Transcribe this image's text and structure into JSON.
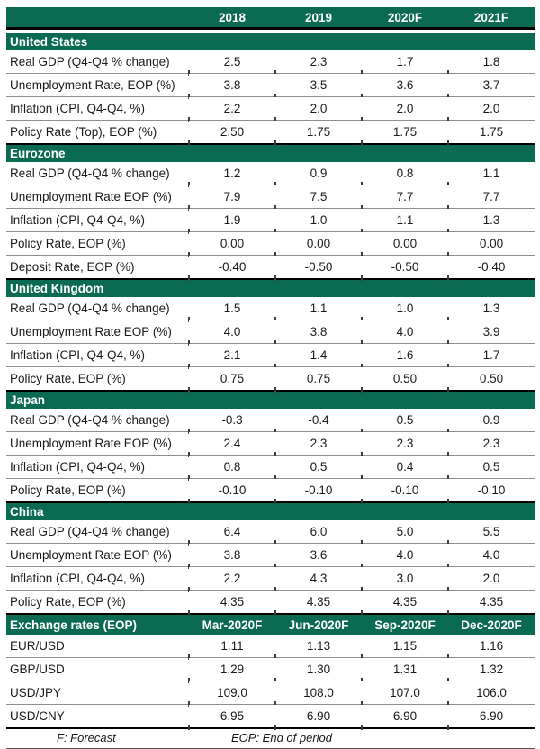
{
  "colors": {
    "band_green": "#0b6a52",
    "band_text": "#ffffff",
    "body_text": "#1a1a1a",
    "row_line": "#8f8f8f",
    "heavy_line": "#000000"
  },
  "table": {
    "period_headers": [
      "",
      "2018",
      "2019",
      "2020F",
      "2021F"
    ],
    "sections": [
      {
        "name": "United States",
        "rows": [
          {
            "label": "Real GDP (Q4-Q4 % change)",
            "values": [
              "2.5",
              "2.3",
              "1.7",
              "1.8"
            ]
          },
          {
            "label": "Unemployment Rate, EOP (%)",
            "values": [
              "3.8",
              "3.5",
              "3.6",
              "3.7"
            ]
          },
          {
            "label": "Inflation (CPI, Q4-Q4, %)",
            "values": [
              "2.2",
              "2.0",
              "2.0",
              "2.0"
            ]
          },
          {
            "label": "Policy Rate (Top), EOP (%)",
            "values": [
              "2.50",
              "1.75",
              "1.75",
              "1.75"
            ]
          }
        ]
      },
      {
        "name": "Eurozone",
        "rows": [
          {
            "label": "Real GDP (Q4-Q4 % change)",
            "values": [
              "1.2",
              "0.9",
              "0.8",
              "1.1"
            ]
          },
          {
            "label": "Unemployment Rate EOP (%)",
            "values": [
              "7.9",
              "7.5",
              "7.7",
              "7.7"
            ]
          },
          {
            "label": "Inflation (CPI, Q4-Q4, %)",
            "values": [
              "1.9",
              "1.0",
              "1.1",
              "1.3"
            ]
          },
          {
            "label": "Policy Rate, EOP (%)",
            "values": [
              "0.00",
              "0.00",
              "0.00",
              "0.00"
            ]
          },
          {
            "label": "Deposit Rate, EOP (%)",
            "values": [
              "-0.40",
              "-0.50",
              "-0.50",
              "-0.40"
            ]
          }
        ]
      },
      {
        "name": "United Kingdom",
        "rows": [
          {
            "label": "Real GDP (Q4-Q4 % change)",
            "values": [
              "1.5",
              "1.1",
              "1.0",
              "1.3"
            ]
          },
          {
            "label": "Unemployment Rate EOP (%)",
            "values": [
              "4.0",
              "3.8",
              "4.0",
              "3.9"
            ]
          },
          {
            "label": "Inflation (CPI, Q4-Q4, %)",
            "values": [
              "2.1",
              "1.4",
              "1.6",
              "1.7"
            ]
          },
          {
            "label": "Policy Rate, EOP (%)",
            "values": [
              "0.75",
              "0.75",
              "0.50",
              "0.50"
            ]
          }
        ]
      },
      {
        "name": "Japan",
        "rows": [
          {
            "label": "Real GDP (Q4-Q4 % change)",
            "values": [
              "-0.3",
              "-0.4",
              "0.5",
              "0.9"
            ]
          },
          {
            "label": "Unemployment Rate EOP (%)",
            "values": [
              "2.4",
              "2.3",
              "2.3",
              "2.3"
            ]
          },
          {
            "label": "Inflation (CPI, Q4-Q4, %)",
            "values": [
              "0.8",
              "0.5",
              "0.4",
              "0.5"
            ]
          },
          {
            "label": "Policy Rate, EOP (%)",
            "values": [
              "-0.10",
              "-0.10",
              "-0.10",
              "-0.10"
            ]
          }
        ]
      },
      {
        "name": "China",
        "rows": [
          {
            "label": "Real GDP (Q4-Q4 % change)",
            "values": [
              "6.4",
              "6.0",
              "5.0",
              "5.5"
            ]
          },
          {
            "label": "Unemployment Rate EOP (%)",
            "values": [
              "3.8",
              "3.6",
              "4.0",
              "4.0"
            ]
          },
          {
            "label": "Inflation (CPI, Q4-Q4, %)",
            "values": [
              "2.2",
              "4.3",
              "3.0",
              "2.0"
            ]
          },
          {
            "label": "Policy Rate, EOP (%)",
            "values": [
              "4.35",
              "4.35",
              "4.35",
              "4.35"
            ]
          }
        ]
      }
    ],
    "exchange": {
      "headers": [
        "Exchange rates (EOP)",
        "Mar-2020F",
        "Jun-2020F",
        "Sep-2020F",
        "Dec-2020F"
      ],
      "rows": [
        {
          "label": "EUR/USD",
          "values": [
            "1.11",
            "1.13",
            "1.15",
            "1.16"
          ]
        },
        {
          "label": "GBP/USD",
          "values": [
            "1.29",
            "1.30",
            "1.31",
            "1.32"
          ]
        },
        {
          "label": "USD/JPY",
          "values": [
            "109.0",
            "108.0",
            "107.0",
            "106.0"
          ]
        },
        {
          "label": "USD/CNY",
          "values": [
            "6.95",
            "6.90",
            "6.90",
            "6.90"
          ]
        }
      ]
    },
    "footnotes": {
      "forecast": "F: Forecast",
      "eop": "EOP: End of period"
    }
  }
}
